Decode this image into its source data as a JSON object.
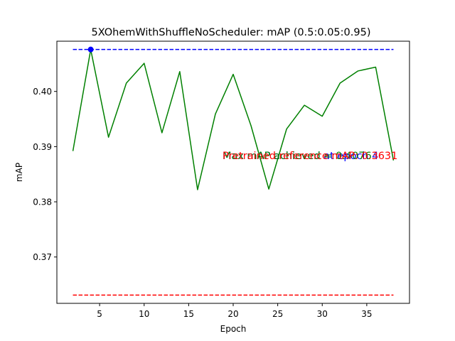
{
  "chart_data": {
    "type": "line",
    "title": "5XOhemWithShuffleNoScheduler:  mAP (0.5:0.05:0.95)",
    "xlabel": "Epoch",
    "ylabel": "mAP",
    "xlim": [
      0.2,
      39.8
    ],
    "ylim": [
      0.3616,
      0.4091
    ],
    "xticks": [
      5,
      10,
      15,
      20,
      25,
      30,
      35
    ],
    "yticks": [
      0.37,
      0.38,
      0.39,
      0.4
    ],
    "ytick_labels": [
      "0.37",
      "0.38",
      "0.39",
      "0.40"
    ],
    "grid": false,
    "series": [
      {
        "color": "#008000",
        "x": [
          2,
          4,
          6,
          8,
          10,
          12,
          14,
          16,
          18,
          20,
          22,
          24,
          26,
          28,
          30,
          32,
          34,
          36,
          38
        ],
        "y": [
          0.3892,
          0.4076,
          0.3917,
          0.4015,
          0.4051,
          0.3925,
          0.4036,
          0.3822,
          0.3959,
          0.4031,
          0.3938,
          0.3823,
          0.3932,
          0.3975,
          0.3955,
          0.4015,
          0.4037,
          0.4044,
          0.3875
        ]
      }
    ],
    "reference_lines": [
      {
        "value": 0.4076,
        "color": "#0000ff",
        "style": "dashed",
        "x_range": [
          2,
          38
        ]
      },
      {
        "value": 0.3631,
        "color": "#ff0000",
        "style": "dashed",
        "x_range": [
          2,
          38
        ]
      }
    ],
    "max_marker": {
      "x": 4,
      "y": 0.4076,
      "color": "#0000ff"
    },
    "annotations": [
      {
        "text": "Max mAP achieved at epoch 4",
        "color": "#0000ff",
        "x": 18.8,
        "y": 0.38835
      },
      {
        "text": "Max mAP achieved = 0.4076",
        "color": "#008000",
        "x": 18.8,
        "y": 0.38835
      },
      {
        "text": "Pretrained reference mAP: 0.3631",
        "color": "#ff0000",
        "x": 18.8,
        "y": 0.38835
      }
    ]
  }
}
